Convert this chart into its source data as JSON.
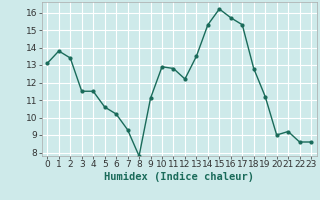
{
  "x": [
    0,
    1,
    2,
    3,
    4,
    5,
    6,
    7,
    8,
    9,
    10,
    11,
    12,
    13,
    14,
    15,
    16,
    17,
    18,
    19,
    20,
    21,
    22,
    23
  ],
  "y": [
    13.1,
    13.8,
    13.4,
    11.5,
    11.5,
    10.6,
    10.2,
    9.3,
    7.8,
    11.1,
    12.9,
    12.8,
    12.2,
    13.5,
    15.3,
    16.2,
    15.7,
    15.3,
    12.8,
    11.2,
    9.0,
    9.2,
    8.6,
    8.6
  ],
  "line_color": "#1a6b5a",
  "marker": "o",
  "markersize": 2.0,
  "linewidth": 1.0,
  "xlabel": "Humidex (Indice chaleur)",
  "xlabel_fontsize": 7.5,
  "bg_color": "#ceeaea",
  "grid_color": "#ffffff",
  "xlim": [
    -0.5,
    23.5
  ],
  "ylim": [
    7.8,
    16.6
  ],
  "yticks": [
    8,
    9,
    10,
    11,
    12,
    13,
    14,
    15,
    16
  ],
  "xticks": [
    0,
    1,
    2,
    3,
    4,
    5,
    6,
    7,
    8,
    9,
    10,
    11,
    12,
    13,
    14,
    15,
    16,
    17,
    18,
    19,
    20,
    21,
    22,
    23
  ],
  "tick_fontsize": 6.5
}
